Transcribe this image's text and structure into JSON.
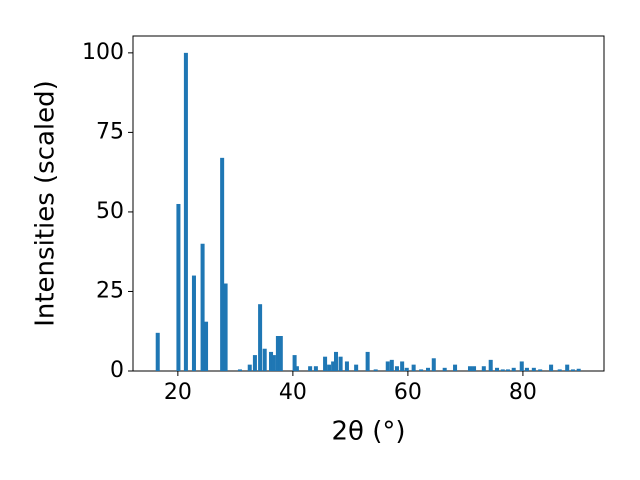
{
  "chart_data": {
    "type": "bar",
    "xlabel": "2θ (°)",
    "ylabel": "Intensities (scaled)",
    "color": "#1f77b4",
    "x": [
      16.5,
      20.1,
      21.4,
      22.8,
      24.3,
      24.9,
      27.7,
      28.3,
      30.8,
      32.5,
      33.4,
      34.3,
      35.1,
      36.2,
      36.7,
      37.4,
      37.9,
      40.3,
      40.7,
      43.0,
      44.0,
      45.6,
      46.3,
      47.0,
      47.5,
      48.3,
      49.4,
      51.0,
      53.0,
      54.4,
      56.5,
      57.2,
      58.1,
      59.0,
      59.8,
      61.0,
      62.3,
      63.5,
      64.5,
      66.4,
      68.2,
      70.8,
      71.5,
      73.2,
      74.4,
      75.5,
      76.5,
      77.4,
      78.4,
      79.8,
      80.7,
      81.9,
      83.0,
      84.9,
      86.4,
      87.7,
      88.7,
      89.7
    ],
    "values": [
      12,
      52.5,
      100,
      30,
      40,
      15.5,
      67,
      27.5,
      0.5,
      2,
      5,
      21,
      7,
      6,
      5,
      11,
      11,
      5,
      1.5,
      1.5,
      1.5,
      4.5,
      2,
      3,
      6,
      4.5,
      3,
      2,
      6,
      0.5,
      3,
      3.5,
      1.5,
      3,
      1,
      2,
      0.5,
      1,
      4,
      1,
      2,
      1.5,
      1.5,
      1.5,
      3.5,
      1,
      0.5,
      0.5,
      1,
      3,
      1,
      1,
      0.5,
      2,
      0.5,
      2,
      0.5,
      0.7
    ],
    "xlim": [
      12.2,
      94.1
    ],
    "ylim": [
      0,
      105.3
    ],
    "xticks": [
      20,
      40,
      60,
      80
    ],
    "yticks": [
      0,
      25,
      50,
      75,
      100
    ]
  }
}
